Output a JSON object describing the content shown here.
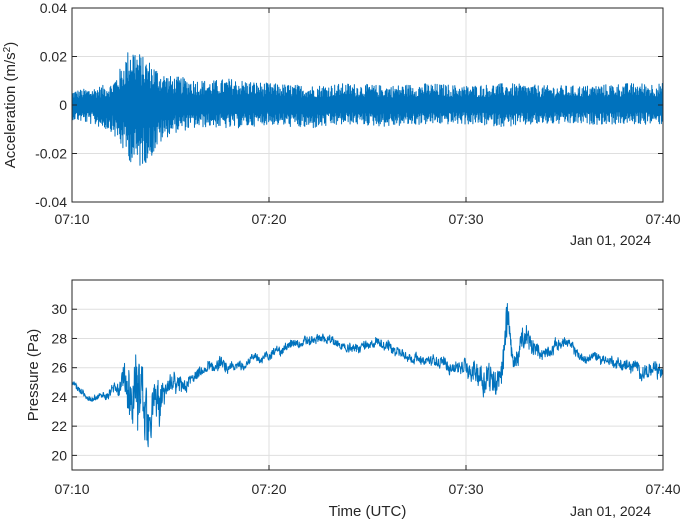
{
  "chart_data": [
    {
      "type": "line",
      "xlabel": "",
      "ylabel": "Acceleration (m/s",
      "ylabel_sup": "2",
      "ylabel_tail": ")",
      "xlim": [
        "07:10",
        "07:40"
      ],
      "ylim": [
        -0.04,
        0.04
      ],
      "xticks": [
        "07:10",
        "07:20",
        "07:30",
        "07:40"
      ],
      "yticks": [
        "-0.04",
        "-0.02",
        "0",
        "0.02",
        "0.04"
      ],
      "date_label": "Jan 01, 2024",
      "grid": true,
      "color": "#0072BD",
      "series": [
        {
          "x_minutes_after_0710": [
            0,
            1,
            2,
            2.5,
            3,
            3.3,
            3.6,
            4,
            4.5,
            5,
            6,
            7,
            8,
            9,
            10,
            12,
            14,
            16,
            18,
            20,
            22,
            24,
            26,
            28,
            30
          ],
          "upper": [
            0.006,
            0.007,
            0.009,
            0.016,
            0.026,
            0.023,
            0.02,
            0.018,
            0.014,
            0.012,
            0.011,
            0.01,
            0.011,
            0.01,
            0.009,
            0.008,
            0.009,
            0.008,
            0.009,
            0.008,
            0.009,
            0.008,
            0.008,
            0.009,
            0.009
          ],
          "lower": [
            -0.006,
            -0.008,
            -0.011,
            -0.018,
            -0.024,
            -0.027,
            -0.025,
            -0.022,
            -0.016,
            -0.012,
            -0.01,
            -0.009,
            -0.01,
            -0.009,
            -0.008,
            -0.01,
            -0.008,
            -0.009,
            -0.008,
            -0.008,
            -0.009,
            -0.008,
            -0.008,
            -0.008,
            -0.008
          ]
        }
      ]
    },
    {
      "type": "line",
      "xlabel": "Time (UTC)",
      "ylabel": "Pressure (Pa)",
      "xlim": [
        "07:10",
        "07:40"
      ],
      "ylim": [
        19,
        32
      ],
      "xticks": [
        "07:10",
        "07:20",
        "07:30",
        "07:40"
      ],
      "yticks": [
        "20",
        "22",
        "24",
        "26",
        "28",
        "30"
      ],
      "date_label": "Jan 01, 2024",
      "grid": true,
      "color": "#0072BD",
      "series": [
        {
          "x_minutes_after_0710": [
            0,
            0.5,
            1,
            1.5,
            2,
            2.5,
            3,
            3.5,
            4,
            4.5,
            5,
            5.5,
            6,
            6.5,
            7,
            7.5,
            8,
            9,
            10,
            10.5,
            11,
            12,
            13,
            14,
            15,
            16,
            17,
            18,
            19,
            20,
            20.5,
            21,
            21.5,
            22,
            22.5,
            23,
            23.5,
            24,
            24.5,
            25,
            25.5,
            26,
            26.5,
            27,
            28,
            29,
            30
          ],
          "values": [
            25.0,
            24.2,
            23.8,
            24.0,
            24.5,
            24.5,
            24.0,
            23.5,
            23.2,
            23.8,
            24.5,
            24.8,
            25.2,
            25.5,
            26.0,
            26.3,
            25.8,
            26.5,
            26.8,
            27.2,
            27.5,
            27.8,
            28.0,
            27.2,
            27.6,
            27.5,
            26.8,
            26.5,
            26.2,
            26.0,
            25.8,
            25.5,
            25.3,
            25.8,
            26.5,
            28.0,
            27.2,
            27.0,
            27.5,
            27.8,
            27.2,
            26.5,
            26.8,
            26.6,
            26.2,
            25.8,
            25.6
          ],
          "noise": [
            0.3,
            0.3,
            0.2,
            0.3,
            0.4,
            1.0,
            2.5,
            3.2,
            2.5,
            1.5,
            0.9,
            0.7,
            0.5,
            0.5,
            0.5,
            0.5,
            0.4,
            0.4,
            0.4,
            0.4,
            0.4,
            0.4,
            0.4,
            0.4,
            0.4,
            0.5,
            0.4,
            0.4,
            0.5,
            0.7,
            0.9,
            1.3,
            1.5,
            1.2,
            0.8,
            1.2,
            0.6,
            0.5,
            0.5,
            0.4,
            0.4,
            0.4,
            0.4,
            0.4,
            0.5,
            0.6,
            0.7
          ]
        }
      ],
      "spike": {
        "x_minutes_after_0710": 22.1,
        "value": 31.6
      }
    }
  ]
}
